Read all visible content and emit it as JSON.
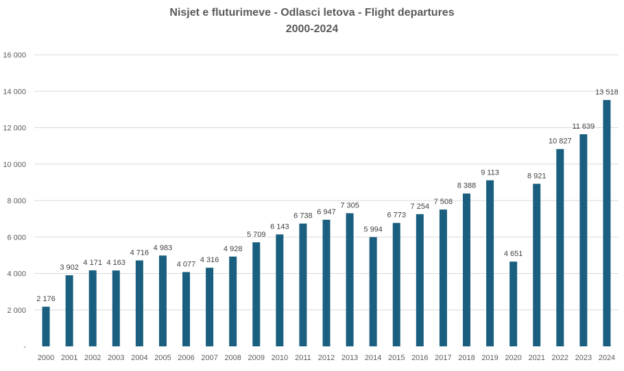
{
  "chart_data": {
    "type": "bar",
    "title": "Nisjet e fluturimeve - Odlasci letova - Flight departures",
    "subtitle": "2000-2024",
    "categories": [
      "2000",
      "2001",
      "2002",
      "2003",
      "2004",
      "2005",
      "2006",
      "2007",
      "2008",
      "2009",
      "2010",
      "2011",
      "2012",
      "2013",
      "2014",
      "2015",
      "2016",
      "2017",
      "2018",
      "2019",
      "2020",
      "2021",
      "2022",
      "2023",
      "2024"
    ],
    "values": [
      2176,
      3902,
      4171,
      4163,
      4716,
      4983,
      4077,
      4316,
      4928,
      5709,
      6143,
      6738,
      6947,
      7305,
      5994,
      6773,
      7254,
      7508,
      8388,
      9113,
      4651,
      8921,
      10827,
      11639,
      13518
    ],
    "value_labels": [
      "2 176",
      "3 902",
      "4 171",
      "4 163",
      "4 716",
      "4 983",
      "4 077",
      "4 316",
      "4 928",
      "5 709",
      "6 143",
      "6 738",
      "6 947",
      "7 305",
      "5 994",
      "6 773",
      "7 254",
      "7 508",
      "8 388",
      "9 113",
      "4 651",
      "8 921",
      "10 827",
      "11 639",
      "13 518"
    ],
    "y_ticks": [
      0,
      2000,
      4000,
      6000,
      8000,
      10000,
      12000,
      14000,
      16000
    ],
    "y_tick_labels": [
      "-",
      "2 000",
      "4 000",
      "6 000",
      "8 000",
      "10 000",
      "12 000",
      "14 000",
      "16 000"
    ],
    "ylim": [
      0,
      16000
    ],
    "grid": true,
    "legend": "none",
    "bar_color": "#1a5f7f",
    "grid_color": "#d9d9d9"
  }
}
